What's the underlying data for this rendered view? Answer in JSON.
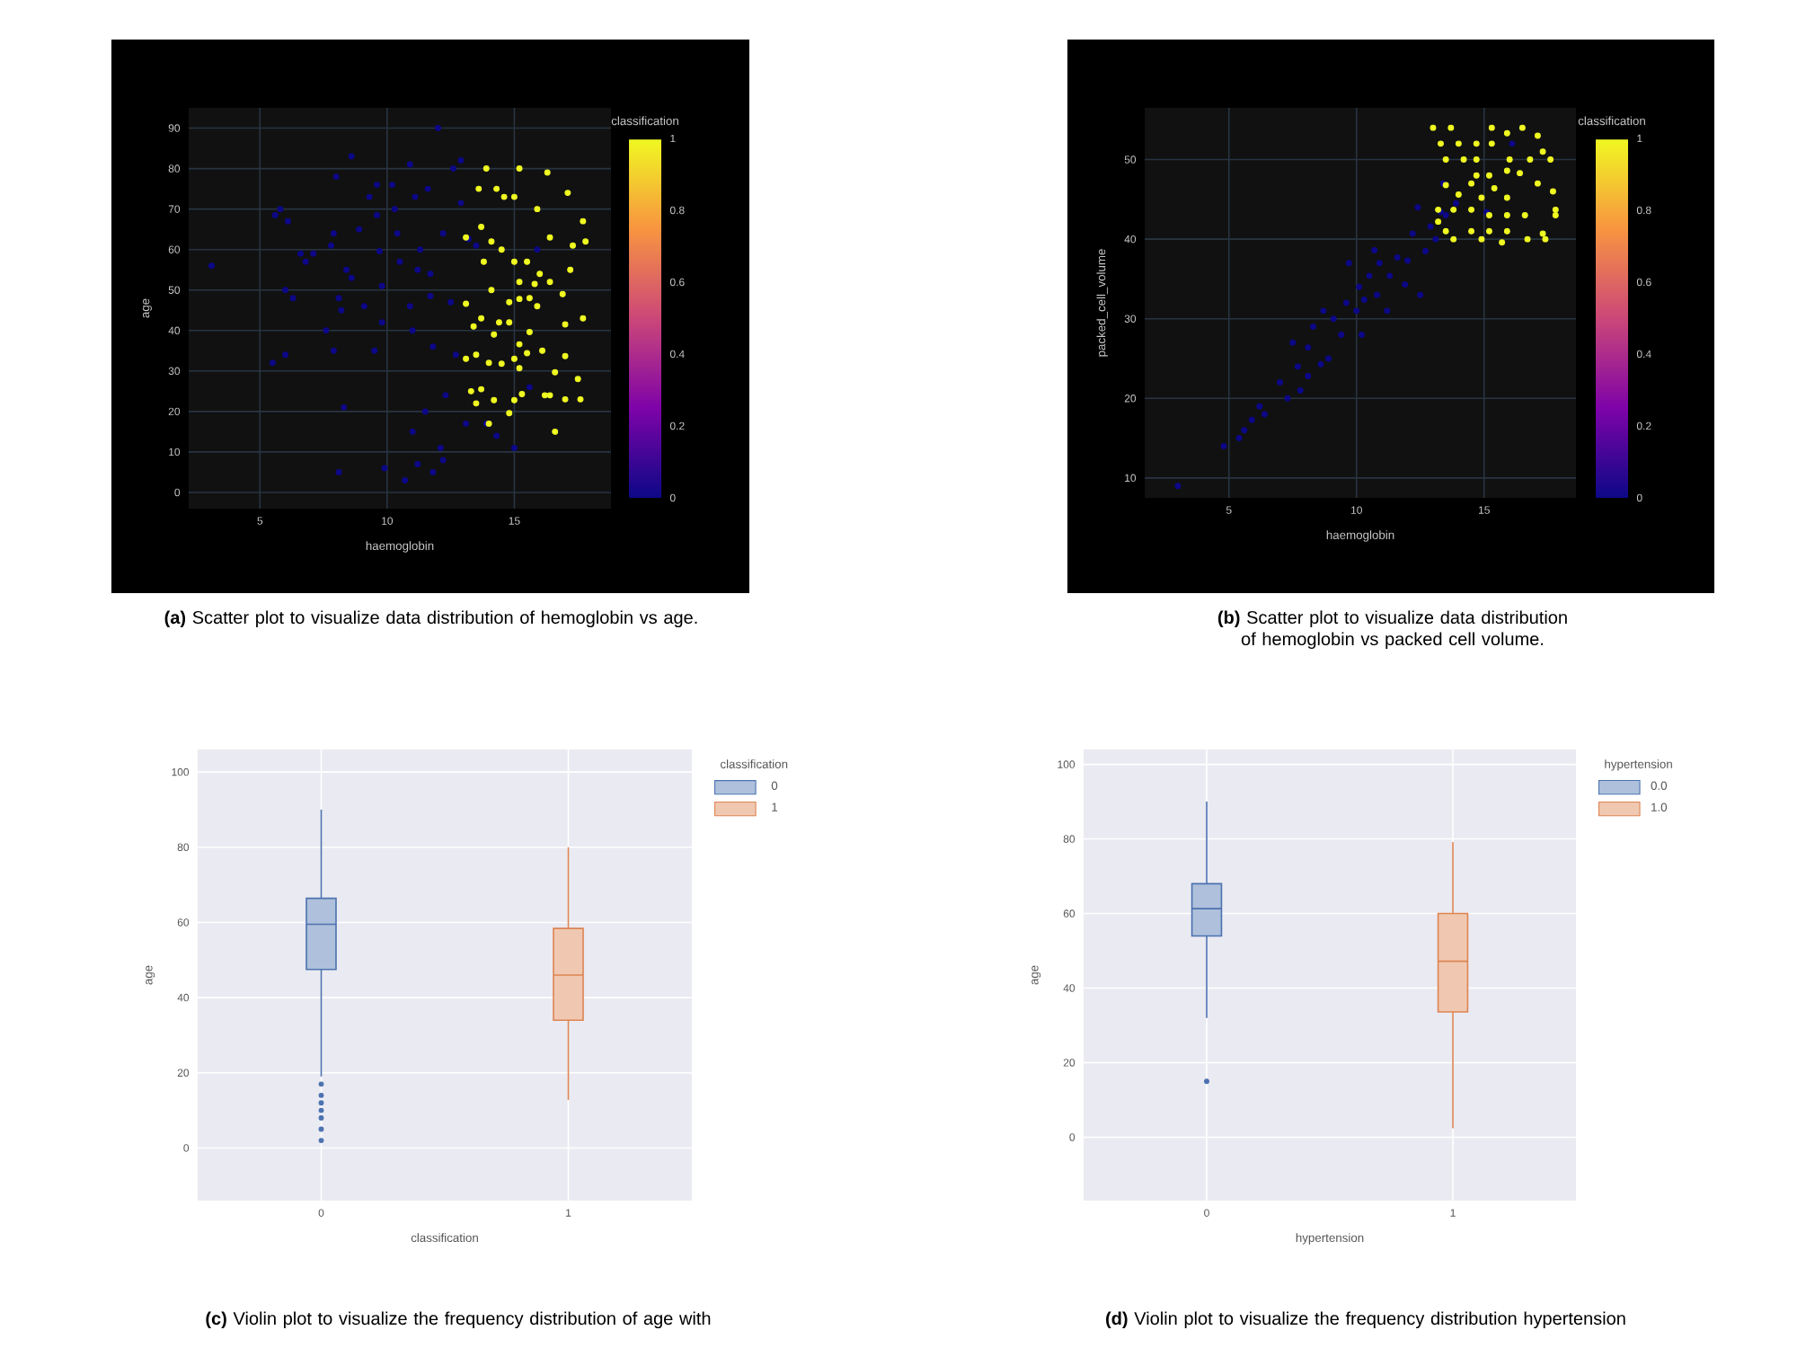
{
  "chart_data": [
    {
      "type": "scatter",
      "title": "**(a)** Scatter plot to visualize data distribution of hemoglobin vs age.",
      "xlabel": "haemoglobin",
      "ylabel": "age",
      "clabel": "classification",
      "clim": [
        0,
        1
      ],
      "cticks": [
        0,
        0.2,
        0.4,
        0.6,
        0.8,
        1
      ],
      "xlim": [
        2.2,
        18.8
      ],
      "ylim": [
        -4,
        95
      ],
      "xticks": [
        5,
        10,
        15
      ],
      "yticks": [
        0,
        10,
        20,
        30,
        40,
        50,
        60,
        70,
        80,
        90
      ],
      "grid": true,
      "marker": "circle",
      "x": [
        3.1,
        5.5,
        5.6,
        5.8,
        6.1,
        6.0,
        6.3,
        6.0,
        6.6,
        6.8,
        7.1,
        7.6,
        7.8,
        7.9,
        8.0,
        7.9,
        8.1,
        8.2,
        8.3,
        8.1,
        8.4,
        8.6,
        8.6,
        8.9,
        9.1,
        9.3,
        9.5,
        9.6,
        9.7,
        9.6,
        9.8,
        9.8,
        9.9,
        10.2,
        10.3,
        10.4,
        10.5,
        10.7,
        10.9,
        10.9,
        11.0,
        11.0,
        11.1,
        11.2,
        11.3,
        11.2,
        11.5,
        11.6,
        11.7,
        11.7,
        11.8,
        11.8,
        12.0,
        12.1,
        12.2,
        12.2,
        12.3,
        12.5,
        12.6,
        12.7,
        12.9,
        12.9,
        13.1,
        13.2,
        13.5,
        13.9,
        14.3,
        15.0,
        15.6,
        15.9,
        13.9,
        13.6,
        14.3,
        14.6,
        15.0,
        15.2,
        16.3,
        17.1,
        17.7,
        17.8,
        17.3,
        15.9,
        16.4,
        13.1,
        13.7,
        13.8,
        14.1,
        14.5,
        13.1,
        13.4,
        13.7,
        14.1,
        14.4,
        14.8,
        15.0,
        15.2,
        15.5,
        15.6,
        15.9,
        16.4,
        16.9,
        17.2,
        17.7,
        17.0,
        16.1,
        17.0,
        16.6,
        17.5,
        17.6,
        17.0,
        16.2,
        15.3,
        15.0,
        14.8,
        14.2,
        13.5,
        13.3,
        13.1,
        13.5,
        14.0,
        14.5,
        15.0,
        15.2,
        15.6,
        15.5,
        14.8,
        14.2,
        13.7,
        14.0,
        16.6,
        16.4,
        15.2,
        15.8,
        15.2,
        16.0
      ],
      "values": [
        56,
        32,
        68.5,
        70,
        67,
        50,
        48,
        34,
        59,
        57,
        59,
        40,
        61,
        35,
        78,
        64,
        48,
        45,
        21,
        5,
        55,
        83,
        53,
        65,
        46,
        73,
        35,
        68.5,
        59.6,
        76,
        51,
        42,
        6,
        76,
        70,
        64,
        57,
        3,
        81,
        46,
        40,
        15,
        73,
        55,
        60,
        7,
        20,
        75,
        54,
        48.5,
        36,
        5,
        90,
        11,
        64,
        8,
        24,
        47,
        80,
        34,
        82,
        71.5,
        17,
        62.6,
        61,
        17,
        14,
        11,
        26,
        60,
        80,
        75,
        75,
        73,
        73,
        80,
        79,
        74,
        67,
        62,
        61,
        70,
        63,
        63,
        65.6,
        57,
        62,
        60,
        46.6,
        41,
        43,
        50,
        42,
        47,
        57,
        52,
        57,
        48,
        46,
        52,
        49,
        55,
        43,
        41.5,
        35,
        33.7,
        29.7,
        28,
        23,
        23,
        24,
        24.3,
        22.8,
        19.6,
        22.8,
        22,
        25,
        33,
        34,
        32,
        31.8,
        33,
        36.6,
        39.6,
        34.4,
        42,
        39,
        25.5,
        17,
        15,
        24,
        30.7,
        51.5,
        47.8,
        54
      ],
      "cvalues": [
        0,
        0,
        0,
        0,
        0,
        0,
        0,
        0,
        0,
        0,
        0,
        0,
        0,
        0,
        0,
        0,
        0,
        0,
        0,
        0,
        0,
        0,
        0,
        0,
        0,
        0,
        0,
        0,
        0,
        0,
        0,
        0,
        0,
        0,
        0,
        0,
        0,
        0,
        0,
        0,
        0,
        0,
        0,
        0,
        0,
        0,
        0,
        0,
        0,
        0,
        0,
        0,
        0,
        0,
        0,
        0,
        0,
        0,
        0,
        0,
        0,
        0,
        0,
        0,
        0,
        0,
        0,
        0,
        0,
        0,
        1,
        1,
        1,
        1,
        1,
        1,
        1,
        1,
        1,
        1,
        1,
        1,
        1,
        1,
        1,
        1,
        1,
        1,
        1,
        1,
        1,
        1,
        1,
        1,
        1,
        1,
        1,
        1,
        1,
        1,
        1,
        1,
        1,
        1,
        1,
        1,
        1,
        1,
        1,
        1,
        1,
        1,
        1,
        1,
        1,
        1,
        1,
        1,
        1,
        1,
        1,
        1,
        1,
        1,
        1,
        1,
        1,
        1,
        1,
        1,
        1,
        1,
        1,
        1,
        1
      ]
    },
    {
      "type": "scatter",
      "title": "**(b)** Scatter plot to visualize data distribution of hemoglobin vs packed cell volume.",
      "xlabel": "haemoglobin",
      "ylabel": "packed_cell_volume",
      "clabel": "classification",
      "clim": [
        0,
        1
      ],
      "cticks": [
        0,
        0.2,
        0.4,
        0.6,
        0.8,
        1
      ],
      "xlim": [
        1.7,
        18.6
      ],
      "ylim": [
        7.5,
        56.5
      ],
      "xticks": [
        5,
        10,
        15
      ],
      "yticks": [
        10,
        20,
        30,
        40,
        50
      ],
      "grid": true,
      "marker": "circle",
      "x": [
        3.0,
        4.8,
        5.4,
        5.6,
        5.9,
        6.2,
        6.4,
        7.0,
        7.3,
        7.5,
        7.7,
        7.8,
        8.1,
        8.1,
        8.3,
        8.6,
        8.7,
        8.9,
        9.1,
        9.4,
        9.6,
        9.7,
        10.0,
        10.1,
        10.2,
        10.3,
        10.5,
        10.7,
        10.8,
        10.9,
        11.2,
        11.3,
        11.6,
        11.9,
        12.0,
        12.2,
        12.4,
        12.5,
        12.7,
        12.9,
        13.1,
        13.3,
        13.5,
        15.1,
        13.4,
        16.1,
        13.9,
        13.0,
        13.7,
        13.3,
        14.0,
        14.7,
        15.3,
        15.3,
        15.9,
        16.5,
        17.3,
        17.6,
        17.1,
        16.8,
        16.0,
        13.5,
        14.2,
        14.7,
        15.2,
        15.9,
        17.1,
        17.7,
        17.8,
        17.8,
        17.3,
        17.4,
        16.7,
        15.9,
        15.2,
        14.5,
        13.5,
        13.2,
        13.2,
        13.8,
        14.5,
        15.2,
        16.6,
        15.9,
        14.0,
        14.9,
        15.9,
        13.5,
        14.5,
        15.4,
        13.8,
        14.9,
        15.7,
        14.7,
        16.4
      ],
      "values": [
        9,
        14,
        15,
        16,
        17.3,
        19,
        18,
        22,
        20,
        27,
        24,
        21,
        22.8,
        26.4,
        29,
        24.3,
        31,
        25,
        30,
        28,
        32,
        37,
        31,
        34,
        28,
        32.4,
        35.4,
        38.6,
        33,
        37,
        31,
        35.4,
        37.7,
        34.3,
        37.3,
        40.7,
        44,
        33,
        38.5,
        41.6,
        40,
        43.4,
        43,
        43.4,
        47,
        52,
        44.5,
        54,
        54,
        52,
        52,
        52,
        52,
        54,
        53.3,
        54,
        51,
        50,
        53,
        50,
        50,
        50,
        50,
        48,
        48,
        48.6,
        47,
        46,
        43.7,
        43,
        40.7,
        40,
        40,
        41,
        41,
        41,
        41,
        42.2,
        43.7,
        43.7,
        43.7,
        43,
        43,
        43,
        45.6,
        45.2,
        45.2,
        46.8,
        47,
        46.4,
        40,
        40,
        39.6,
        50,
        48.3
      ],
      "cvalues": [
        0,
        0,
        0,
        0,
        0,
        0,
        0,
        0,
        0,
        0,
        0,
        0,
        0,
        0,
        0,
        0,
        0,
        0,
        0,
        0,
        0,
        0,
        0,
        0,
        0,
        0,
        0,
        0,
        0,
        0,
        0,
        0,
        0,
        0,
        0,
        0,
        0,
        0,
        0,
        0,
        0,
        0,
        0,
        0,
        0,
        0,
        0,
        1,
        1,
        1,
        1,
        1,
        1,
        1,
        1,
        1,
        1,
        1,
        1,
        1,
        1,
        1,
        1,
        1,
        1,
        1,
        1,
        1,
        1,
        1,
        1,
        1,
        1,
        1,
        1,
        1,
        1,
        1,
        1,
        1,
        1,
        1,
        1,
        1,
        1,
        1,
        1,
        1,
        1,
        1,
        1,
        1,
        1,
        1,
        1
      ]
    },
    {
      "type": "box",
      "title": "**(c)** Violin plot to visualize the frequency distribution of age with",
      "xlabel": "classification",
      "ylabel": "age",
      "legend_title": "classification",
      "categories": [
        "0",
        "1"
      ],
      "ylim": [
        -14,
        106
      ],
      "yticks": [
        0,
        20,
        40,
        60,
        80,
        100
      ],
      "grid": true,
      "legend": "top right",
      "series": [
        {
          "name": "0",
          "color": "#4c72b0",
          "boxes": [
            {
              "low": 19,
              "q1": 47.5,
              "median": 59.5,
              "q3": 66.4,
              "high": 90,
              "outliers": [
                2,
                5,
                8,
                10,
                12,
                14,
                17
              ]
            },
            null
          ]
        },
        {
          "name": "1",
          "color": "#dd8452",
          "boxes": [
            null,
            {
              "low": 12.8,
              "q1": 34,
              "median": 46,
              "q3": 58.4,
              "high": 80
            }
          ]
        }
      ]
    },
    {
      "type": "box",
      "title": "**(d)** Violin plot to visualize the frequency distribution hypertension",
      "xlabel": "hypertension",
      "ylabel": "age",
      "legend_title": "hypertension",
      "categories": [
        "0",
        "1"
      ],
      "ylim": [
        -17,
        104
      ],
      "yticks": [
        0,
        20,
        40,
        60,
        80,
        100
      ],
      "grid": true,
      "legend": "top right",
      "series": [
        {
          "name": "0.0",
          "color": "#4c72b0",
          "boxes": [
            {
              "low": 32,
              "q1": 54,
              "median": 61.3,
              "q3": 68,
              "high": 90,
              "outliers": [
                15
              ]
            },
            null
          ]
        },
        {
          "name": "1.0",
          "color": "#dd8452",
          "boxes": [
            null,
            {
              "low": 2.4,
              "q1": 33.6,
              "median": 47.2,
              "q3": 60,
              "high": 79.2
            }
          ]
        }
      ]
    }
  ]
}
